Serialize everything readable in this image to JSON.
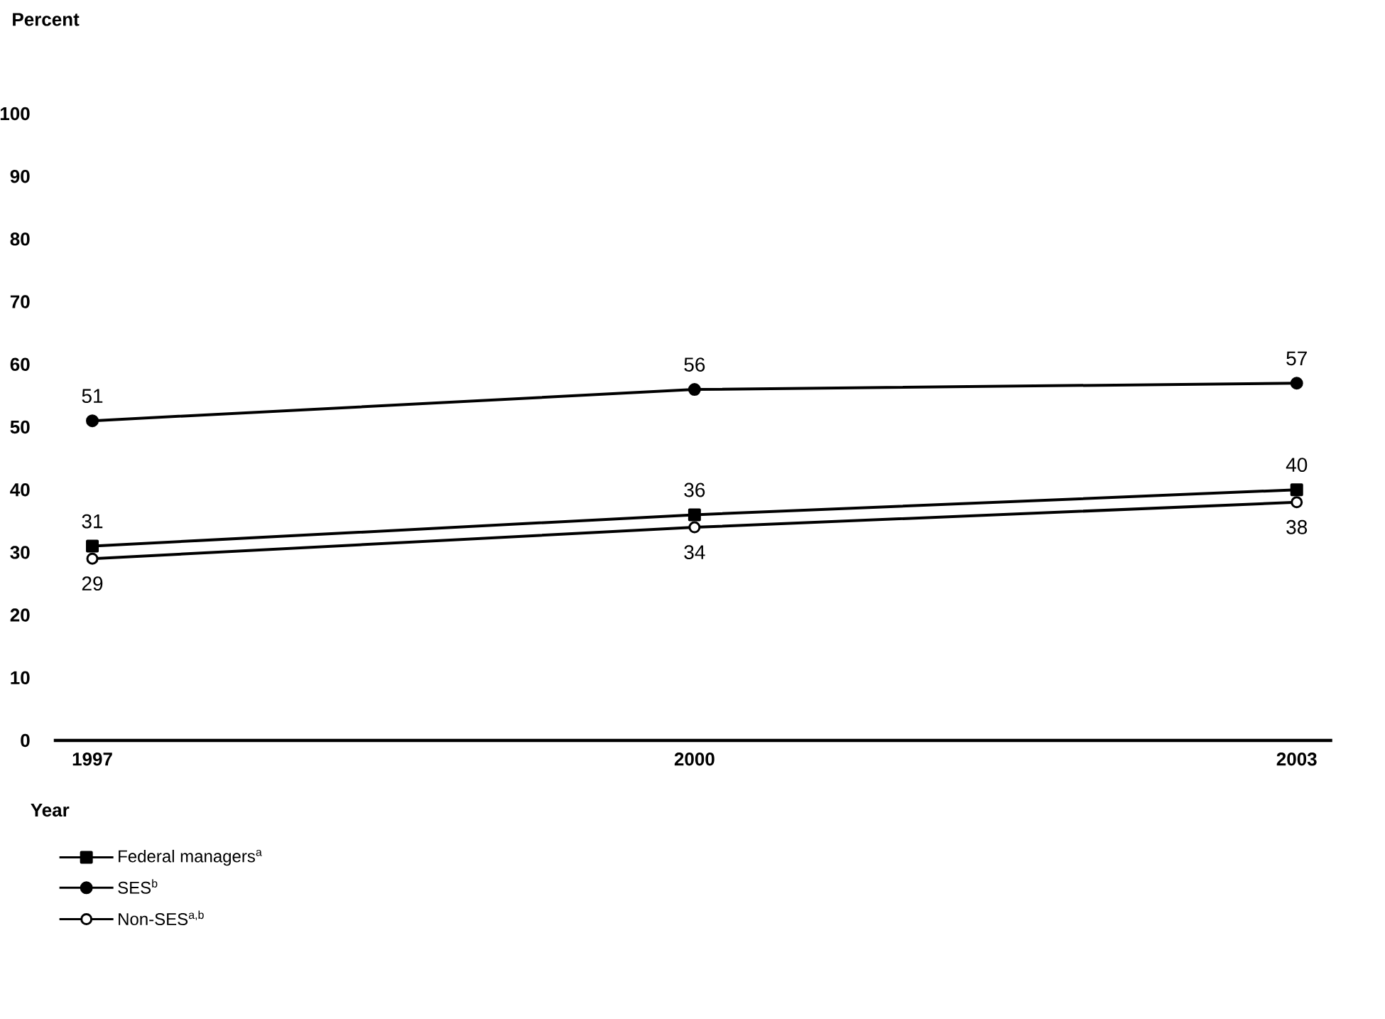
{
  "chart_data": {
    "type": "line",
    "xlabel": "Year",
    "ylabel": "Percent",
    "categories": [
      "1997",
      "2000",
      "2003"
    ],
    "ylim": [
      0,
      100
    ],
    "yticks": [
      0,
      10,
      20,
      30,
      40,
      50,
      60,
      70,
      80,
      90,
      100
    ],
    "grid": false,
    "legend": "bottom left",
    "data_labels": true,
    "line_style": "solid",
    "series": [
      {
        "name": "Federal managers$^{a}$",
        "color": "#000000",
        "marker": "square",
        "values": [
          31,
          36,
          40
        ]
      },
      {
        "name": "SES$^{b}$",
        "color": "#000000",
        "marker": "circle",
        "values": [
          51,
          56,
          57
        ]
      },
      {
        "name": "Non-SES$^{a,b}$",
        "color": "#000000",
        "marker": "open circle",
        "values": [
          29,
          34,
          38
        ]
      }
    ]
  }
}
